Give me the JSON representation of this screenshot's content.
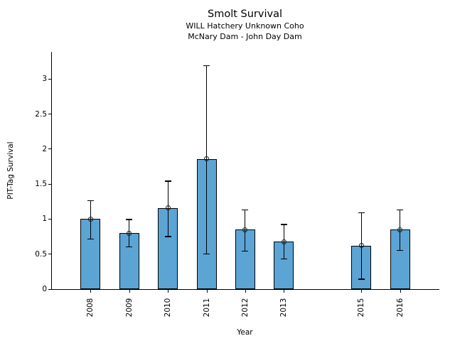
{
  "chart_data": {
    "type": "bar",
    "title": "Smolt Survival",
    "subtitle1": "WILL Hatchery Unknown Coho",
    "subtitle2": "McNary Dam - John Day Dam",
    "xlabel": "Year",
    "ylabel": "PIT-Tag Survival",
    "categories": [
      "2008",
      "2009",
      "2010",
      "2011",
      "2012",
      "2013",
      "2015",
      "2016"
    ],
    "x_numeric": [
      2008,
      2009,
      2010,
      2011,
      2012,
      2013,
      2015,
      2016
    ],
    "missing_years": [
      "2014"
    ],
    "values": [
      1.0,
      0.8,
      1.16,
      1.86,
      0.85,
      0.68,
      0.62,
      0.85
    ],
    "error_low": [
      0.72,
      0.61,
      0.76,
      0.51,
      0.55,
      0.44,
      0.15,
      0.56
    ],
    "error_high": [
      1.27,
      1.0,
      1.55,
      3.2,
      1.14,
      0.93,
      1.1,
      1.14
    ],
    "ytick_labels": [
      "0",
      "0.5",
      "1",
      "1.5",
      "2",
      "2.5",
      "3"
    ],
    "ytick_values": [
      0,
      0.5,
      1,
      1.5,
      2,
      2.5,
      3
    ],
    "ylim": [
      0,
      3.39
    ],
    "grid": false,
    "legend": false,
    "marker": "open-circle",
    "bar_color": "#5BA4D4",
    "bar_edge_color": "#000000",
    "error_color": "#000000",
    "background_color": "#ffffff"
  }
}
